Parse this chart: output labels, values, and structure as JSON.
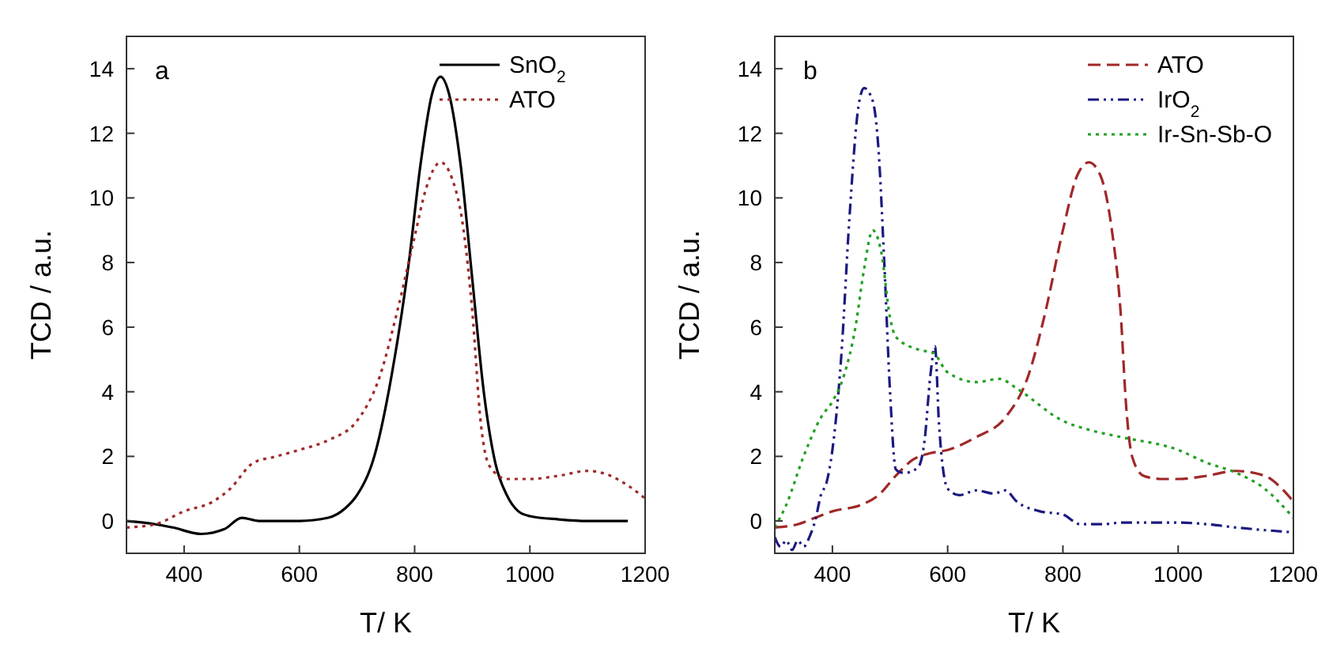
{
  "chart_data": [
    {
      "type": "line",
      "xlabel": "T/ K",
      "ylabel": "TCD / a.u.",
      "annotations": [
        "a"
      ],
      "xlim": [
        300,
        1200
      ],
      "ylim": [
        -1,
        15
      ],
      "xticks": [
        400,
        600,
        800,
        1000,
        1200
      ],
      "yticks": [
        0,
        2,
        4,
        6,
        8,
        10,
        12,
        14
      ],
      "legend": "top right",
      "grid": false,
      "series": [
        {
          "name": "SnO$_{2}$",
          "color": "#000000",
          "line_style": "solid",
          "x": [
            300,
            350,
            380,
            430,
            470,
            500,
            530,
            600,
            650,
            680,
            700,
            730,
            760,
            790,
            810,
            830,
            845,
            860,
            880,
            900,
            920,
            940,
            960,
            980,
            1000,
            1050,
            1100,
            1170
          ],
          "values": [
            0,
            -0.1,
            -0.2,
            -0.4,
            -0.25,
            0.1,
            0,
            0,
            0.1,
            0.4,
            0.8,
            2,
            4.5,
            8,
            11,
            13.2,
            13.75,
            13.2,
            11,
            7.5,
            4,
            1.8,
            0.8,
            0.3,
            0.15,
            0.05,
            0,
            0
          ]
        },
        {
          "name": "ATO",
          "color": "#a02828",
          "line_style": "dotted",
          "x": [
            300,
            350,
            400,
            450,
            480,
            520,
            560,
            600,
            650,
            700,
            740,
            770,
            800,
            820,
            845,
            865,
            885,
            900,
            915,
            930,
            960,
            1000,
            1050,
            1100,
            1140,
            1170,
            1200
          ],
          "values": [
            -0.2,
            -0.1,
            0.3,
            0.6,
            1,
            1.8,
            2,
            2.2,
            2.5,
            3.1,
            4.5,
            6.5,
            8.8,
            10.3,
            11.1,
            10.6,
            9,
            6.5,
            3,
            1.7,
            1.3,
            1.3,
            1.4,
            1.55,
            1.4,
            1.1,
            0.7
          ]
        }
      ]
    },
    {
      "type": "line",
      "xlabel": "T/ K",
      "ylabel": "TCD / a.u.",
      "annotations": [
        "b"
      ],
      "xlim": [
        300,
        1200
      ],
      "ylim": [
        -1,
        15
      ],
      "xticks": [
        400,
        600,
        800,
        1000,
        1200
      ],
      "yticks": [
        0,
        2,
        4,
        6,
        8,
        10,
        12,
        14
      ],
      "legend": "top right",
      "grid": false,
      "series": [
        {
          "name": "ATO",
          "color": "#a02828",
          "line_style": "dashed",
          "x": [
            300,
            340,
            370,
            400,
            450,
            480,
            510,
            540,
            570,
            600,
            650,
            700,
            740,
            770,
            800,
            825,
            845,
            865,
            885,
            900,
            910,
            920,
            940,
            970,
            1000,
            1050,
            1100,
            1150,
            1180,
            1200
          ],
          "values": [
            -0.2,
            -0.1,
            0.1,
            0.3,
            0.5,
            0.8,
            1.4,
            1.9,
            2.1,
            2.2,
            2.6,
            3.2,
            4.5,
            6.5,
            9,
            10.7,
            11.1,
            10.7,
            9,
            6.5,
            3.5,
            2,
            1.4,
            1.3,
            1.3,
            1.4,
            1.55,
            1.4,
            1,
            0.6
          ]
        },
        {
          "name": "IrO$_{2}$",
          "color": "#1a1a80",
          "line_style": "dashdot",
          "x": [
            300,
            310,
            320,
            330,
            340,
            350,
            360,
            370,
            380,
            390,
            400,
            415,
            430,
            445,
            455,
            470,
            480,
            490,
            500,
            510,
            520,
            530,
            550,
            560,
            570,
            578,
            585,
            600,
            620,
            650,
            680,
            700,
            720,
            760,
            800,
            830,
            870,
            900,
            1000,
            1050,
            1100,
            1200
          ],
          "values": [
            -0.5,
            -0.8,
            -0.6,
            -0.9,
            -0.6,
            -0.8,
            -0.5,
            0,
            0.8,
            1.2,
            2.2,
            5,
            9.5,
            12.8,
            13.4,
            13,
            11.5,
            8,
            4,
            1.6,
            1.5,
            1.5,
            1.7,
            2.5,
            4.5,
            5.4,
            3,
            1,
            0.8,
            0.95,
            0.85,
            0.95,
            0.6,
            0.3,
            0.2,
            -0.1,
            -0.1,
            -0.05,
            -0.05,
            -0.1,
            -0.2,
            -0.35
          ]
        },
        {
          "name": "Ir-Sn-Sb-O",
          "color": "#22a022",
          "line_style": "dotted",
          "x": [
            300,
            320,
            350,
            380,
            400,
            420,
            440,
            455,
            470,
            485,
            500,
            510,
            550,
            575,
            600,
            650,
            690,
            720,
            800,
            850,
            900,
            1000,
            1050,
            1100,
            1150,
            1200
          ],
          "values": [
            -0.2,
            0.5,
            2,
            3.2,
            3.7,
            4.5,
            6,
            7.8,
            9,
            8.3,
            6.3,
            5.7,
            5.3,
            5.2,
            4.6,
            4.3,
            4.4,
            4.1,
            3.1,
            2.8,
            2.6,
            2.2,
            1.8,
            1.5,
            1,
            0.1
          ]
        }
      ]
    }
  ]
}
